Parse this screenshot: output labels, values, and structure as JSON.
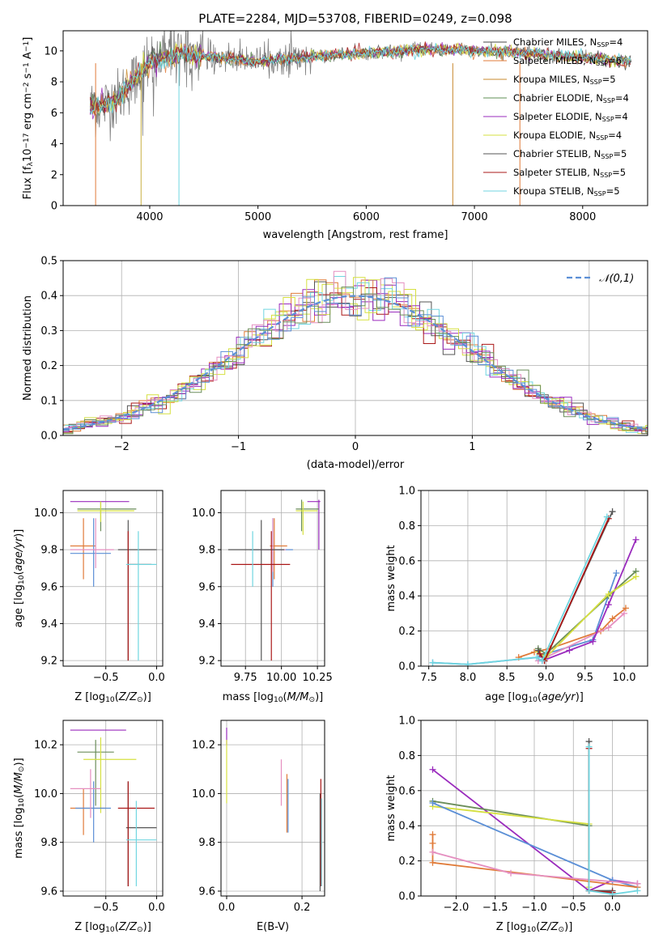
{
  "palette": [
    "#555555",
    "#e07b39",
    "#dd8822",
    "#6b8e5a",
    "#9a2bbd",
    "#ccdd44",
    "#555555",
    "#aa1818",
    "#66cccc"
  ],
  "chart_data": [
    {
      "id": "spectrum",
      "type": "line",
      "title": "PLATE=2284, MJD=53708, FIBERID=0249, z=0.098",
      "xlabel": "wavelength [Angstrom, rest frame]",
      "ylabel": "Flux [f_λ10^-17 erg cm^-2 s^-1 A^-1]",
      "xlim": [
        3200,
        8600
      ],
      "ylim": [
        0,
        11.3
      ],
      "xticks": [
        4000,
        5000,
        6000,
        7000,
        8000
      ],
      "yticks": [
        0,
        2,
        4,
        6,
        8,
        10
      ],
      "grid": false,
      "legend_position": "top-right",
      "series": [
        {
          "name": "Chabrier MILES, N_SSP=4",
          "color": "#4a4a4a"
        },
        {
          "name": "Salpeter MILES, N_SSP=6",
          "color": "#e07b39"
        },
        {
          "name": "Kroupa MILES, N_SSP=5",
          "color": "#c8892e"
        },
        {
          "name": "Chabrier ELODIE, N_SSP=4",
          "color": "#5f8f55"
        },
        {
          "name": "Salpeter ELODIE, N_SSP=4",
          "color": "#9a2bbd"
        },
        {
          "name": "Kroupa ELODIE, N_SSP=4",
          "color": "#d6e040"
        },
        {
          "name": "Chabrier STELIB, N_SSP=5",
          "color": "#555555"
        },
        {
          "name": "Salpeter STELIB, N_SSP=5",
          "color": "#aa1818"
        },
        {
          "name": "Kroupa STELIB, N_SSP=5",
          "color": "#70d6e0"
        }
      ],
      "data_color": "#808080",
      "spikes": [
        {
          "x": 3500,
          "y": 0,
          "color": "#e07b39"
        },
        {
          "x": 3920,
          "y": 0,
          "color": "#c8b040"
        },
        {
          "x": 4270,
          "y": 0,
          "color": "#70d6e0"
        },
        {
          "x": 6800,
          "y": 0,
          "color": "#c8892e"
        },
        {
          "x": 7420,
          "y": 0,
          "color": "#e07b39"
        }
      ]
    },
    {
      "id": "residuals",
      "type": "bar",
      "xlabel": "(data-model)/error",
      "ylabel": "Normed distribution",
      "xlim": [
        -2.5,
        2.5
      ],
      "ylim": [
        0,
        0.5
      ],
      "xticks": [
        -2,
        -1,
        0,
        1,
        2
      ],
      "yticks": [
        0.0,
        0.1,
        0.2,
        0.3,
        0.4,
        0.5
      ],
      "grid": true,
      "legend": "𝒩(0,1)",
      "legend_position": "top-right",
      "gauss_color": "#5b8fd6",
      "bin_edges_start": -2.5,
      "bin_width": 0.1,
      "hist_colors": [
        "#e07b39",
        "#9a2bbd",
        "#d6e040",
        "#555555",
        "#aa1818",
        "#70d6e0",
        "#9a2bbd",
        "#d6e040",
        "#e58fc0",
        "#5b8fd6",
        "#6b8e5a"
      ]
    },
    {
      "id": "age_vs_Z",
      "type": "scatter",
      "xlabel": "Z [log10(Z/Z⊙)]",
      "ylabel": "age  [log10(age/yr)]",
      "xlim": [
        -0.92,
        0.06
      ],
      "ylim": [
        9.17,
        10.12
      ],
      "xticks": [
        -0.5,
        0.0
      ],
      "yticks": [
        9.2,
        9.4,
        9.6,
        9.8,
        10.0
      ],
      "grid": true,
      "crosses": [
        {
          "x": -0.55,
          "y": 10.06,
          "dx": [
            -0.85,
            -0.27
          ],
          "dy": [
            10.06,
            10.06
          ],
          "color": "#9a2bbd"
        },
        {
          "x": -0.55,
          "y": 10.02,
          "dx": [
            -0.78,
            -0.2
          ],
          "dy": [
            9.9,
            10.06
          ],
          "color": "#6b8e5a"
        },
        {
          "x": -0.55,
          "y": 10.01,
          "dx": [
            -0.78,
            -0.22
          ],
          "dy": [
            9.95,
            10.06
          ],
          "color": "#d6e040"
        },
        {
          "x": -0.72,
          "y": 9.82,
          "dx": [
            -0.85,
            -0.6
          ],
          "dy": [
            9.64,
            9.97
          ],
          "color": "#e07b39"
        },
        {
          "x": -0.62,
          "y": 9.78,
          "dx": [
            -0.85,
            -0.45
          ],
          "dy": [
            9.6,
            9.97
          ],
          "color": "#5b8fd6"
        },
        {
          "x": -0.6,
          "y": 9.8,
          "dx": [
            -0.85,
            -0.42
          ],
          "dy": [
            9.7,
            9.97
          ],
          "color": "#e58fc0"
        },
        {
          "x": -0.28,
          "y": 9.8,
          "dx": [
            -0.38,
            0.0
          ],
          "dy": [
            9.2,
            9.96
          ],
          "color": "#555555"
        },
        {
          "x": -0.28,
          "y": 9.72,
          "dx": [
            -0.28,
            -0.05
          ],
          "dy": [
            9.2,
            9.9
          ],
          "color": "#aa1818"
        },
        {
          "x": -0.18,
          "y": 9.72,
          "dx": [
            -0.3,
            0.0
          ],
          "dy": [
            9.2,
            9.9
          ],
          "color": "#70d6e0"
        }
      ]
    },
    {
      "id": "age_vs_mass",
      "type": "scatter",
      "xlabel": "mass [log10(M/M⊙)]",
      "ylabel": "",
      "xlim": [
        9.58,
        10.3
      ],
      "ylim": [
        9.17,
        10.12
      ],
      "xticks": [
        9.75,
        10.0,
        10.25
      ],
      "yticks": [
        9.2,
        9.4,
        9.6,
        9.8,
        10.0
      ],
      "grid": true,
      "crosses": [
        {
          "x": 10.26,
          "y": 10.06,
          "dx": [
            10.18,
            10.27
          ],
          "dy": [
            9.8,
            10.07
          ],
          "color": "#9a2bbd"
        },
        {
          "x": 10.14,
          "y": 10.02,
          "dx": [
            10.1,
            10.26
          ],
          "dy": [
            9.9,
            10.07
          ],
          "color": "#6b8e5a"
        },
        {
          "x": 10.15,
          "y": 10.01,
          "dx": [
            10.1,
            10.25
          ],
          "dy": [
            9.88,
            10.06
          ],
          "color": "#d6e040"
        },
        {
          "x": 9.95,
          "y": 9.82,
          "dx": [
            9.92,
            10.04
          ],
          "dy": [
            9.64,
            9.97
          ],
          "color": "#e07b39"
        },
        {
          "x": 9.94,
          "y": 9.8,
          "dx": [
            9.78,
            10.08
          ],
          "dy": [
            9.6,
            9.97
          ],
          "color": "#5b8fd6"
        },
        {
          "x": 9.94,
          "y": 9.8,
          "dx": [
            9.85,
            10.03
          ],
          "dy": [
            9.68,
            9.97
          ],
          "color": "#e58fc0"
        },
        {
          "x": 9.86,
          "y": 9.8,
          "dx": [
            9.63,
            10.02
          ],
          "dy": [
            9.2,
            9.96
          ],
          "color": "#555555"
        },
        {
          "x": 9.93,
          "y": 9.72,
          "dx": [
            9.65,
            10.06
          ],
          "dy": [
            9.2,
            9.9
          ],
          "color": "#aa1818"
        },
        {
          "x": 9.8,
          "y": 9.72,
          "dx": [
            9.8,
            9.8
          ],
          "dy": [
            9.6,
            9.9
          ],
          "color": "#70d6e0"
        }
      ]
    },
    {
      "id": "weight_vs_age",
      "type": "line",
      "xlabel": "age  [log10(age/yr)]",
      "ylabel": "mass weight",
      "xlim": [
        7.4,
        10.3
      ],
      "ylim": [
        0,
        1.0
      ],
      "xticks": [
        7.5,
        8.0,
        8.5,
        9.0,
        9.5,
        10.0
      ],
      "yticks": [
        0.0,
        0.2,
        0.4,
        0.6,
        0.8,
        1.0
      ],
      "grid": true,
      "series": [
        {
          "color": "#5b8fd6",
          "x": [
            7.55,
            8.0,
            8.9,
            9.0,
            9.6,
            9.9
          ],
          "y": [
            0.02,
            0.01,
            0.05,
            0.07,
            0.15,
            0.53
          ]
        },
        {
          "color": "#e07b39",
          "x": [
            8.65,
            8.85,
            9.05,
            9.7,
            9.85,
            10.02
          ],
          "y": [
            0.05,
            0.08,
            0.1,
            0.2,
            0.27,
            0.33
          ]
        },
        {
          "color": "#e58fc0",
          "x": [
            8.9,
            9.0,
            9.8,
            10.0
          ],
          "y": [
            0.03,
            0.05,
            0.22,
            0.3
          ]
        },
        {
          "color": "#9a2bbd",
          "x": [
            8.95,
            9.3,
            9.6,
            9.8,
            10.15
          ],
          "y": [
            0.03,
            0.09,
            0.14,
            0.35,
            0.72
          ]
        },
        {
          "color": "#6b8e5a",
          "x": [
            8.9,
            9.0,
            9.8,
            10.15
          ],
          "y": [
            0.1,
            0.07,
            0.4,
            0.54
          ]
        },
        {
          "color": "#d6e040",
          "x": [
            8.9,
            9.0,
            9.8,
            10.15
          ],
          "y": [
            0.08,
            0.05,
            0.41,
            0.51
          ]
        },
        {
          "color": "#555555",
          "x": [
            8.9,
            8.98,
            9.85
          ],
          "y": [
            0.09,
            0.03,
            0.88
          ]
        },
        {
          "color": "#aa1818",
          "x": [
            8.92,
            8.98,
            9.8
          ],
          "y": [
            0.07,
            0.03,
            0.84
          ]
        },
        {
          "color": "#70d6e0",
          "x": [
            7.55,
            8.0,
            8.88,
            8.95,
            9.78
          ],
          "y": [
            0.02,
            0.01,
            0.05,
            0.03,
            0.85
          ]
        }
      ]
    },
    {
      "id": "mass_vs_Z",
      "type": "scatter",
      "xlabel": "Z [log10(Z/Z⊙)]",
      "ylabel": "mass [log10(M/M⊙)]",
      "xlim": [
        -0.92,
        0.06
      ],
      "ylim": [
        9.58,
        10.3
      ],
      "xticks": [
        -0.5,
        0.0
      ],
      "yticks": [
        9.6,
        9.8,
        10.0,
        10.2
      ],
      "grid": true,
      "crosses": [
        {
          "x": -0.55,
          "y": 10.26,
          "dx": [
            -0.85,
            -0.3
          ],
          "dy": [
            10.26,
            10.26
          ],
          "color": "#9a2bbd"
        },
        {
          "x": -0.6,
          "y": 10.17,
          "dx": [
            -0.78,
            -0.42
          ],
          "dy": [
            9.95,
            10.22
          ],
          "color": "#6b8e5a"
        },
        {
          "x": -0.55,
          "y": 10.14,
          "dx": [
            -0.72,
            -0.2
          ],
          "dy": [
            9.92,
            10.23
          ],
          "color": "#d6e040"
        },
        {
          "x": -0.72,
          "y": 9.94,
          "dx": [
            -0.85,
            -0.5
          ],
          "dy": [
            9.83,
            10.02
          ],
          "color": "#e07b39"
        },
        {
          "x": -0.62,
          "y": 9.94,
          "dx": [
            -0.8,
            -0.45
          ],
          "dy": [
            9.8,
            10.05
          ],
          "color": "#5b8fd6"
        },
        {
          "x": -0.65,
          "y": 10.02,
          "dx": [
            -0.85,
            -0.55
          ],
          "dy": [
            9.9,
            10.1
          ],
          "color": "#e58fc0"
        },
        {
          "x": -0.28,
          "y": 9.86,
          "dx": [
            -0.3,
            0.0
          ],
          "dy": [
            9.62,
            10.05
          ],
          "color": "#555555"
        },
        {
          "x": -0.28,
          "y": 9.94,
          "dx": [
            -0.38,
            -0.02
          ],
          "dy": [
            9.62,
            10.05
          ],
          "color": "#aa1818"
        },
        {
          "x": -0.2,
          "y": 9.81,
          "dx": [
            -0.3,
            0.0
          ],
          "dy": [
            9.62,
            9.97
          ],
          "color": "#70d6e0"
        }
      ]
    },
    {
      "id": "mass_vs_EBV",
      "type": "scatter",
      "xlabel": "E(B-V)",
      "ylabel": "",
      "xlim": [
        -0.015,
        0.26
      ],
      "ylim": [
        9.58,
        10.3
      ],
      "xticks": [
        0.0,
        0.2
      ],
      "yticks": [
        9.6,
        9.8,
        10.0,
        10.2
      ],
      "grid": true,
      "crosses": [
        {
          "x": 0.0,
          "y": 10.26,
          "dx": [
            0.0,
            0.0
          ],
          "dy": [
            10.2,
            10.27
          ],
          "color": "#9a2bbd"
        },
        {
          "x": 0.0,
          "y": 10.2,
          "dx": [
            0.0,
            0.0
          ],
          "dy": [
            9.96,
            10.22
          ],
          "color": "#d6e040"
        },
        {
          "x": 0.145,
          "y": 10.03,
          "dx": [
            0.145,
            0.145
          ],
          "dy": [
            9.95,
            10.14
          ],
          "color": "#e58fc0"
        },
        {
          "x": 0.16,
          "y": 10.0,
          "dx": [
            0.16,
            0.16
          ],
          "dy": [
            9.84,
            10.08
          ],
          "color": "#e07b39"
        },
        {
          "x": 0.163,
          "y": 9.96,
          "dx": [
            0.163,
            0.163
          ],
          "dy": [
            9.84,
            10.06
          ],
          "color": "#5b8fd6"
        },
        {
          "x": 0.248,
          "y": 9.86,
          "dx": [
            0.248,
            0.248
          ],
          "dy": [
            9.6,
            10.0
          ],
          "color": "#555555"
        },
        {
          "x": 0.25,
          "y": 9.94,
          "dx": [
            0.25,
            0.25
          ],
          "dy": [
            9.62,
            10.06
          ],
          "color": "#aa1818"
        },
        {
          "x": 0.252,
          "y": 9.81,
          "dx": [
            0.252,
            0.252
          ],
          "dy": [
            9.62,
            9.98
          ],
          "color": "#70d6e0"
        }
      ]
    },
    {
      "id": "weight_vs_Z",
      "type": "line",
      "xlabel": "Z [log10(Z/Z⊙)]",
      "ylabel": "mass weight",
      "xlim": [
        -2.45,
        0.45
      ],
      "ylim": [
        0,
        1.0
      ],
      "xticks": [
        -2.0,
        -1.5,
        -1.0,
        -0.5,
        0.0
      ],
      "yticks": [
        0.0,
        0.2,
        0.4,
        0.6,
        0.8,
        1.0
      ],
      "grid": true,
      "series": [
        {
          "color": "#9a2bbd",
          "x": [
            -2.3,
            -0.3,
            0.0,
            0.32
          ],
          "y": [
            0.72,
            0.03,
            0.09,
            0.07
          ]
        },
        {
          "color": "#6b8e5a",
          "x": [
            -2.3,
            -0.3,
            -0.3
          ],
          "y": [
            0.54,
            0.4,
            0.03
          ]
        },
        {
          "color": "#d6e040",
          "x": [
            -2.3,
            -0.3,
            -0.3
          ],
          "y": [
            0.51,
            0.41,
            0.05
          ]
        },
        {
          "color": "#5b8fd6",
          "x": [
            -2.3,
            0.0,
            0.32
          ],
          "y": [
            0.53,
            0.09,
            0.05
          ]
        },
        {
          "color": "#e07b39",
          "x": [
            -2.3,
            -2.3,
            -2.3,
            0.32
          ],
          "y": [
            0.35,
            0.3,
            0.19,
            0.05
          ]
        },
        {
          "color": "#e58fc0",
          "x": [
            -2.3,
            -1.3,
            0.32
          ],
          "y": [
            0.25,
            0.13,
            0.07
          ]
        },
        {
          "color": "#555555",
          "x": [
            -0.3,
            -0.3,
            0.0
          ],
          "y": [
            0.88,
            0.03,
            0.03
          ]
        },
        {
          "color": "#aa1818",
          "x": [
            -0.3,
            -0.3,
            0.0
          ],
          "y": [
            0.84,
            0.03,
            0.02
          ]
        },
        {
          "color": "#70d6e0",
          "x": [
            -0.3,
            -0.3,
            0.0,
            0.32
          ],
          "y": [
            0.85,
            0.03,
            0.01,
            0.03
          ]
        }
      ]
    }
  ]
}
